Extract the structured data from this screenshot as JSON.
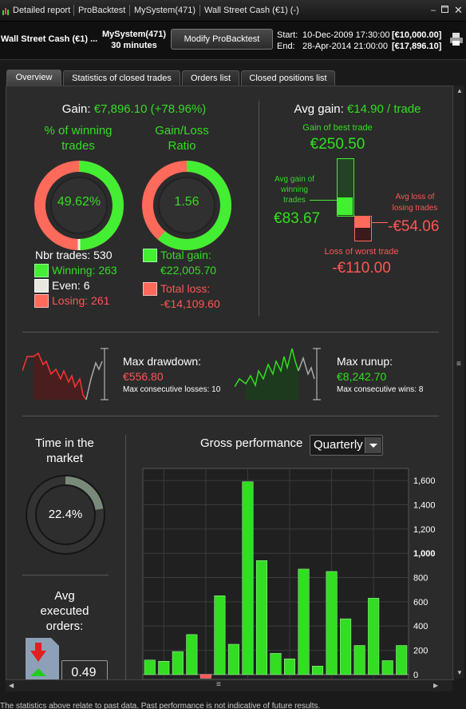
{
  "titlebar": {
    "breadcrumb": [
      "Detailed report",
      "ProBacktest",
      "MySystem(471)",
      "Wall Street Cash (€1) (-)"
    ]
  },
  "header": {
    "instrument": "Wall Street Cash (€1) ...",
    "system": "MySystem(471)",
    "timeframe": "30 minutes",
    "modify_label": "Modify ProBacktest",
    "start_label": "Start:",
    "start_date": "10-Dec-2009 17:30:00",
    "start_value": "[€10,000.00]",
    "end_label": "End:",
    "end_date": "28-Apr-2014 21:00:00",
    "end_value": "[€17,896.10]"
  },
  "tabs": [
    {
      "label": "Overview",
      "active": true
    },
    {
      "label": "Statistics of closed trades"
    },
    {
      "label": "Orders list"
    },
    {
      "label": "Closed positions list"
    }
  ],
  "gain": {
    "label": "Gain:",
    "value": "€7,896.10 (+78.96%)"
  },
  "winning_pct": {
    "title_line1": "% of winning",
    "title_line2": "trades",
    "value": "49.62%",
    "fraction": 0.4962
  },
  "gain_loss_ratio": {
    "title_line1": "Gain/Loss",
    "title_line2": "Ratio",
    "value": "1.56"
  },
  "trades": {
    "nbr_label": "Nbr trades: 530",
    "winning": "Winning: 263",
    "even": "Even: 6",
    "losing": "Losing: 261"
  },
  "totals": {
    "gain_label": "Total gain:",
    "gain_value": "€22,005.70",
    "loss_label": "Total loss:",
    "loss_value": "-€14,109.60"
  },
  "avg_gain": {
    "label": "Avg gain:",
    "value": "€14.90 / trade",
    "best_label": "Gain of best trade",
    "best_value": "€250.50",
    "avg_win_label_1": "Avg gain of",
    "avg_win_label_2": "winning",
    "avg_win_label_3": "trades",
    "avg_win_value": "€83.67",
    "avg_loss_label_1": "Avg loss of",
    "avg_loss_label_2": "losing trades",
    "avg_loss_value": "-€54.06",
    "worst_label": "Loss of worst trade",
    "worst_value": "-€110.00"
  },
  "drawdown": {
    "label": "Max drawdown:",
    "value": "€556.80",
    "consec": "Max consecutive losses: 10"
  },
  "runup": {
    "label": "Max runup:",
    "value": "€8,242.70",
    "consec": "Max consecutive wins: 8"
  },
  "time_in_market": {
    "title_line1": "Time in the",
    "title_line2": "market",
    "value": "22.4%",
    "fraction": 0.224
  },
  "avg_orders": {
    "title_line1": "Avg",
    "title_line2": "executed",
    "title_line3": "orders:",
    "value": "0.49"
  },
  "gross": {
    "title": "Gross performance",
    "period": "Quarterly"
  },
  "chart_data": {
    "type": "bar",
    "title": "Gross performance",
    "ylim": [
      -40,
      1700
    ],
    "yticks": [
      "1,600",
      "1,400",
      "1,200",
      "1,000",
      "800",
      "600",
      "400",
      "200",
      "0"
    ],
    "values": [
      120,
      110,
      190,
      330,
      -30,
      650,
      250,
      1590,
      940,
      175,
      130,
      870,
      70,
      850,
      460,
      240,
      630,
      115,
      240
    ],
    "colors": {
      "positive": "#33dd22",
      "negative": "#ff5555"
    }
  },
  "footer": {
    "text": "The statistics above relate to past data. Past performance is not indicative of future results."
  }
}
